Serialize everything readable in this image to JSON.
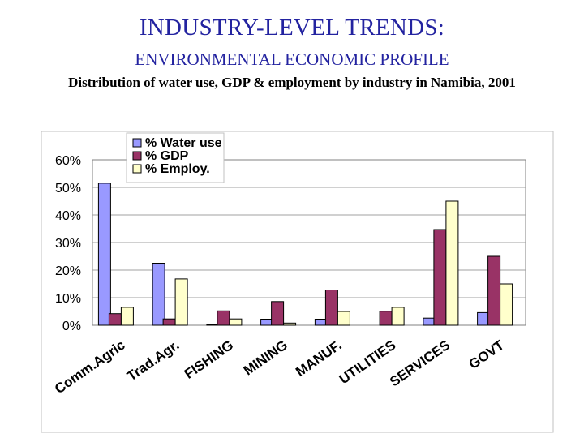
{
  "heading": {
    "title": "INDUSTRY-LEVEL TRENDS:",
    "subtitle": "ENVIRONMENTAL ECONOMIC PROFILE",
    "caption": "Distribution of water use, GDP & employment by industry in Namibia, 2001"
  },
  "chart_data": {
    "type": "bar",
    "categories": [
      "Comm.Agric",
      "Trad.Agr.",
      "FISHING",
      "MINING",
      "MANUF.",
      "UTILITIES",
      "SERVICES",
      "GOVT"
    ],
    "series": [
      {
        "name": "% Water use",
        "color": "#9999ff",
        "values": [
          51.5,
          22.5,
          0.3,
          2.2,
          2.2,
          0,
          2.6,
          4.6
        ]
      },
      {
        "name": "% GDP",
        "color": "#993366",
        "values": [
          4.2,
          2.3,
          5.2,
          8.6,
          12.8,
          5.1,
          34.7,
          25.0
        ]
      },
      {
        "name": "% Employ.",
        "color": "#ffffcc",
        "values": [
          6.5,
          16.8,
          2.3,
          0.8,
          5.0,
          6.5,
          45.0,
          15.0
        ]
      }
    ],
    "yticks": [
      "0%",
      "10%",
      "20%",
      "30%",
      "40%",
      "50%",
      "60%"
    ],
    "ylim": [
      0,
      60
    ],
    "legend_position": "top-left",
    "grid": true
  }
}
